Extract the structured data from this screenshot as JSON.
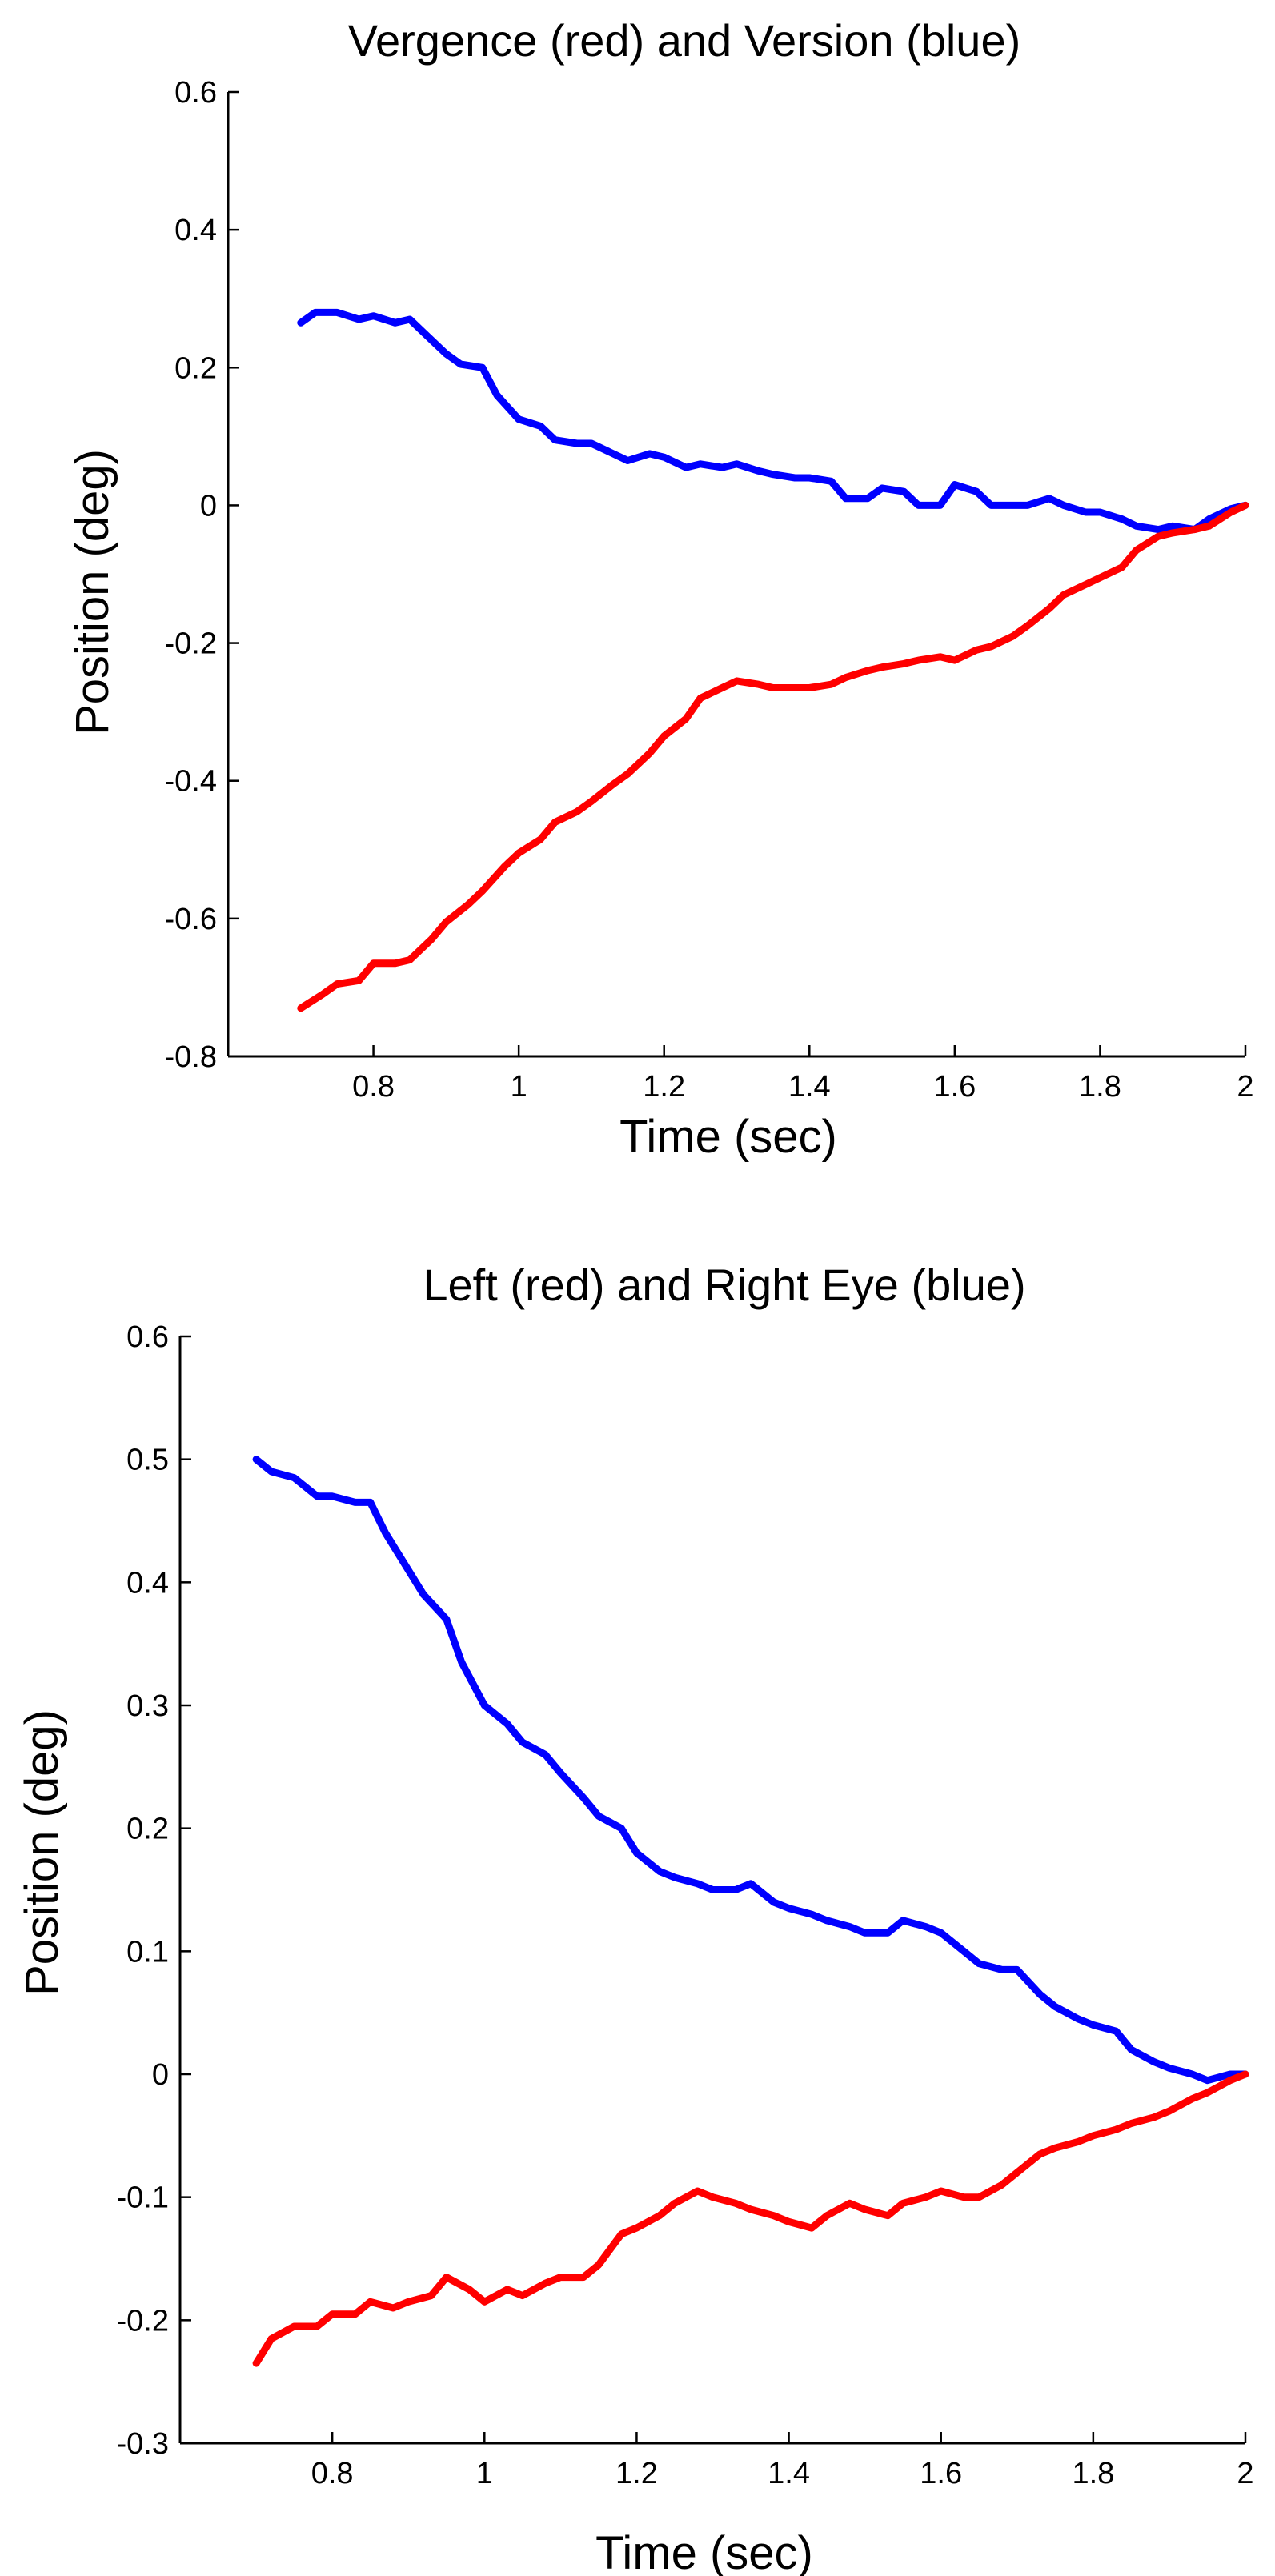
{
  "colors": {
    "red": "#ff0000",
    "blue": "#0000ff",
    "axis": "#000000",
    "background": "#ffffff"
  },
  "chart_data": [
    {
      "type": "line",
      "title": "Vergence (red) and Version (blue)",
      "xlabel": "Time (sec)",
      "ylabel": "Position (deg)",
      "xlim": [
        0.6,
        2.0
      ],
      "ylim": [
        -0.8,
        0.6
      ],
      "xticks": [
        0.8,
        1.0,
        1.2,
        1.4,
        1.6,
        1.8,
        2.0
      ],
      "xtick_labels": [
        "0.8",
        "1",
        "1.2",
        "1.4",
        "1.6",
        "1.8",
        "2"
      ],
      "yticks": [
        -0.8,
        -0.6,
        -0.4,
        -0.2,
        0,
        0.2,
        0.4,
        0.6
      ],
      "ytick_labels": [
        "-0.8",
        "-0.6",
        "-0.4",
        "-0.2",
        "0",
        "0.2",
        "0.4",
        "0.6"
      ],
      "grid": false,
      "series": [
        {
          "color": "#0000ff",
          "x": [
            0.7,
            0.72,
            0.75,
            0.78,
            0.8,
            0.83,
            0.85,
            0.87,
            0.9,
            0.92,
            0.95,
            0.97,
            1.0,
            1.03,
            1.05,
            1.08,
            1.1,
            1.13,
            1.15,
            1.18,
            1.2,
            1.23,
            1.25,
            1.28,
            1.3,
            1.33,
            1.35,
            1.38,
            1.4,
            1.43,
            1.45,
            1.48,
            1.5,
            1.53,
            1.55,
            1.58,
            1.6,
            1.63,
            1.65,
            1.68,
            1.7,
            1.73,
            1.75,
            1.78,
            1.8,
            1.83,
            1.85,
            1.88,
            1.9,
            1.93,
            1.95,
            1.98,
            2.0
          ],
          "y": [
            0.265,
            0.28,
            0.28,
            0.27,
            0.275,
            0.265,
            0.27,
            0.25,
            0.22,
            0.205,
            0.2,
            0.16,
            0.125,
            0.115,
            0.095,
            0.09,
            0.09,
            0.075,
            0.065,
            0.075,
            0.07,
            0.055,
            0.06,
            0.055,
            0.06,
            0.05,
            0.045,
            0.04,
            0.04,
            0.035,
            0.01,
            0.01,
            0.025,
            0.02,
            0.0,
            0.0,
            0.03,
            0.02,
            0.0,
            0.0,
            0.0,
            0.01,
            0.0,
            -0.01,
            -0.01,
            -0.02,
            -0.03,
            -0.035,
            -0.03,
            -0.035,
            -0.02,
            -0.005,
            0.0
          ]
        },
        {
          "color": "#ff0000",
          "x": [
            0.7,
            0.73,
            0.75,
            0.78,
            0.8,
            0.83,
            0.85,
            0.88,
            0.9,
            0.93,
            0.95,
            0.98,
            1.0,
            1.03,
            1.05,
            1.08,
            1.1,
            1.13,
            1.15,
            1.18,
            1.2,
            1.23,
            1.25,
            1.28,
            1.3,
            1.33,
            1.35,
            1.38,
            1.4,
            1.43,
            1.45,
            1.48,
            1.5,
            1.53,
            1.55,
            1.58,
            1.6,
            1.63,
            1.65,
            1.68,
            1.7,
            1.73,
            1.75,
            1.78,
            1.8,
            1.83,
            1.85,
            1.88,
            1.9,
            1.93,
            1.95,
            1.98,
            2.0
          ],
          "y": [
            -0.73,
            -0.71,
            -0.695,
            -0.69,
            -0.665,
            -0.665,
            -0.66,
            -0.63,
            -0.605,
            -0.58,
            -0.56,
            -0.525,
            -0.505,
            -0.485,
            -0.46,
            -0.445,
            -0.43,
            -0.405,
            -0.39,
            -0.36,
            -0.335,
            -0.31,
            -0.28,
            -0.265,
            -0.255,
            -0.26,
            -0.265,
            -0.265,
            -0.265,
            -0.26,
            -0.25,
            -0.24,
            -0.235,
            -0.23,
            -0.225,
            -0.22,
            -0.225,
            -0.21,
            -0.205,
            -0.19,
            -0.175,
            -0.15,
            -0.13,
            -0.115,
            -0.105,
            -0.09,
            -0.065,
            -0.045,
            -0.04,
            -0.035,
            -0.03,
            -0.01,
            0.0
          ]
        }
      ]
    },
    {
      "type": "line",
      "title": "Left (red) and Right Eye (blue)",
      "xlabel": "Time (sec)",
      "ylabel": "Position (deg)",
      "xlim": [
        0.6,
        2.0
      ],
      "ylim": [
        -0.3,
        0.6
      ],
      "xticks": [
        0.8,
        1.0,
        1.2,
        1.4,
        1.6,
        1.8,
        2.0
      ],
      "xtick_labels": [
        "0.8",
        "1",
        "1.2",
        "1.4",
        "1.6",
        "1.8",
        "2"
      ],
      "yticks": [
        -0.3,
        -0.2,
        -0.1,
        0,
        0.1,
        0.2,
        0.3,
        0.4,
        0.5,
        0.6
      ],
      "ytick_labels": [
        "-0.3",
        "-0.2",
        "-0.1",
        "0",
        "0.1",
        "0.2",
        "0.3",
        "0.4",
        "0.5",
        "0.6"
      ],
      "grid": false,
      "series": [
        {
          "color": "#0000ff",
          "x": [
            0.7,
            0.72,
            0.75,
            0.78,
            0.8,
            0.83,
            0.85,
            0.87,
            0.9,
            0.92,
            0.95,
            0.97,
            1.0,
            1.03,
            1.05,
            1.08,
            1.1,
            1.13,
            1.15,
            1.18,
            1.2,
            1.23,
            1.25,
            1.28,
            1.3,
            1.33,
            1.35,
            1.38,
            1.4,
            1.43,
            1.45,
            1.48,
            1.5,
            1.53,
            1.55,
            1.58,
            1.6,
            1.63,
            1.65,
            1.68,
            1.7,
            1.73,
            1.75,
            1.78,
            1.8,
            1.83,
            1.85,
            1.88,
            1.9,
            1.93,
            1.95,
            1.98,
            2.0
          ],
          "y": [
            0.5,
            0.49,
            0.485,
            0.47,
            0.47,
            0.465,
            0.465,
            0.44,
            0.41,
            0.39,
            0.37,
            0.335,
            0.3,
            0.285,
            0.27,
            0.26,
            0.245,
            0.225,
            0.21,
            0.2,
            0.18,
            0.165,
            0.16,
            0.155,
            0.15,
            0.15,
            0.155,
            0.14,
            0.135,
            0.13,
            0.125,
            0.12,
            0.115,
            0.115,
            0.125,
            0.12,
            0.115,
            0.1,
            0.09,
            0.085,
            0.085,
            0.065,
            0.055,
            0.045,
            0.04,
            0.035,
            0.02,
            0.01,
            0.005,
            0.0,
            -0.005,
            0.0,
            0.0
          ]
        },
        {
          "color": "#ff0000",
          "x": [
            0.7,
            0.72,
            0.75,
            0.78,
            0.8,
            0.83,
            0.85,
            0.88,
            0.9,
            0.93,
            0.95,
            0.98,
            1.0,
            1.03,
            1.05,
            1.08,
            1.1,
            1.13,
            1.15,
            1.18,
            1.2,
            1.23,
            1.25,
            1.28,
            1.3,
            1.33,
            1.35,
            1.38,
            1.4,
            1.43,
            1.45,
            1.48,
            1.5,
            1.53,
            1.55,
            1.58,
            1.6,
            1.63,
            1.65,
            1.68,
            1.7,
            1.73,
            1.75,
            1.78,
            1.8,
            1.83,
            1.85,
            1.88,
            1.9,
            1.93,
            1.95,
            1.98,
            2.0
          ],
          "y": [
            -0.235,
            -0.215,
            -0.205,
            -0.205,
            -0.195,
            -0.195,
            -0.185,
            -0.19,
            -0.185,
            -0.18,
            -0.165,
            -0.175,
            -0.185,
            -0.175,
            -0.18,
            -0.17,
            -0.165,
            -0.165,
            -0.155,
            -0.13,
            -0.125,
            -0.115,
            -0.105,
            -0.095,
            -0.1,
            -0.105,
            -0.11,
            -0.115,
            -0.12,
            -0.125,
            -0.115,
            -0.105,
            -0.11,
            -0.115,
            -0.105,
            -0.1,
            -0.095,
            -0.1,
            -0.1,
            -0.09,
            -0.08,
            -0.065,
            -0.06,
            -0.055,
            -0.05,
            -0.045,
            -0.04,
            -0.035,
            -0.03,
            -0.02,
            -0.015,
            -0.005,
            0.0
          ]
        }
      ]
    }
  ]
}
